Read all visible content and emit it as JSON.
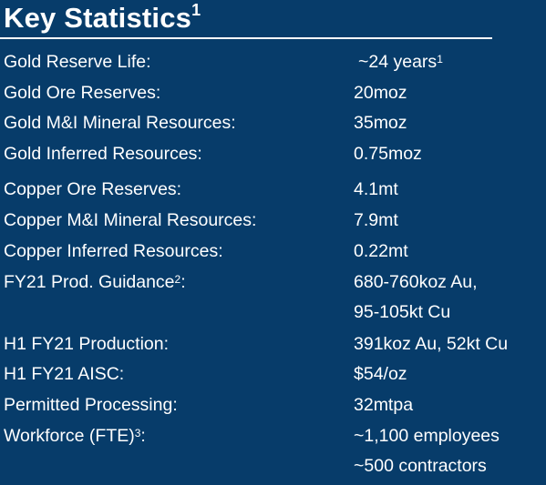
{
  "title": "Key Statistics",
  "title_sup": "1",
  "rows": [
    {
      "label": "Gold Reserve Life:",
      "label_sup": "",
      "value": [
        "~24 years"
      ],
      "value_sup": "1"
    },
    {
      "label": "Gold Ore Reserves:",
      "label_sup": "",
      "value": [
        "20moz"
      ],
      "value_sup": ""
    },
    {
      "label": "Gold M&I Mineral Resources:",
      "label_sup": "",
      "value": [
        "35moz"
      ],
      "value_sup": ""
    },
    {
      "label": "Gold Inferred Resources:",
      "label_sup": "",
      "value": [
        "0.75moz"
      ],
      "value_sup": ""
    },
    {
      "label": "Copper Ore Reserves:",
      "label_sup": "",
      "value": [
        "4.1mt"
      ],
      "value_sup": ""
    },
    {
      "label": "Copper M&I Mineral Resources:",
      "label_sup": "",
      "value": [
        "7.9mt"
      ],
      "value_sup": ""
    },
    {
      "label": "Copper Inferred Resources:",
      "label_sup": "",
      "value": [
        "0.22mt"
      ],
      "value_sup": ""
    },
    {
      "label": "FY21 Prod. Guidance",
      "label_sup": "2",
      "label_suffix": ":",
      "value": [
        "680-760koz Au,",
        "95-105kt Cu"
      ],
      "value_sup": ""
    },
    {
      "label": "H1 FY21 Production:",
      "label_sup": "",
      "value": [
        "391koz Au, 52kt Cu"
      ],
      "value_sup": ""
    },
    {
      "label": "H1 FY21 AISC:",
      "label_sup": "",
      "value": [
        "$54/oz"
      ],
      "value_sup": ""
    },
    {
      "label": "Permitted Processing:",
      "label_sup": "",
      "value": [
        "32mtpa"
      ],
      "value_sup": ""
    },
    {
      "label": "Workforce (FTE)",
      "label_sup": "3",
      "label_suffix": ":",
      "value": [
        "~1,100 employees",
        "~500 contractors"
      ],
      "value_sup": ""
    }
  ]
}
